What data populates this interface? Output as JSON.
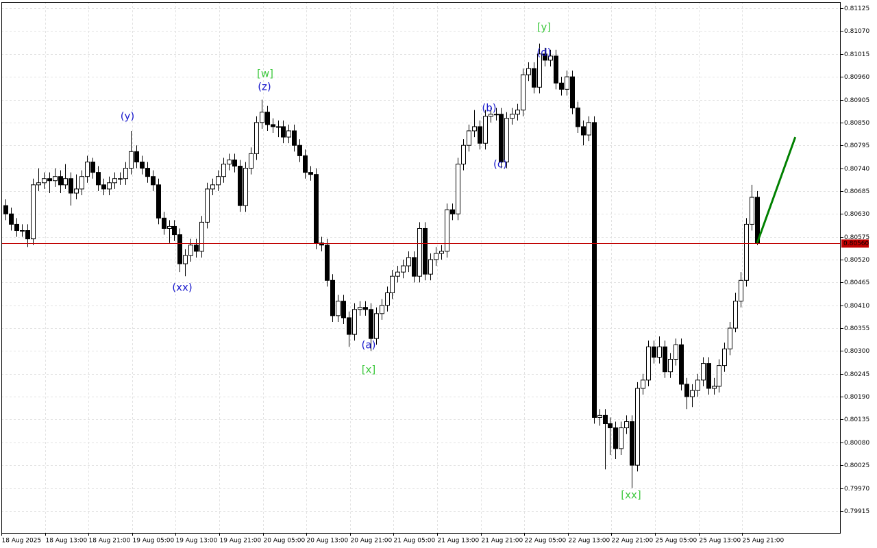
{
  "chart_data": {
    "type": "candlestick",
    "categories": [
      "18 Aug 2025",
      null,
      null,
      null,
      null,
      null,
      null,
      null,
      "18 Aug 13:00",
      null,
      null,
      null,
      null,
      null,
      null,
      null,
      "18 Aug 21:00",
      null,
      null,
      null,
      null,
      null,
      null,
      null,
      "19 Aug 05:00",
      null,
      null,
      null,
      null,
      null,
      null,
      null,
      "19 Aug 13:00",
      null,
      null,
      null,
      null,
      null,
      null,
      null,
      "19 Aug 21:00",
      null,
      null,
      null,
      null,
      null,
      null,
      null,
      "20 Aug 05:00",
      null,
      null,
      null,
      null,
      null,
      null,
      null,
      "20 Aug 13:00",
      null,
      null,
      null,
      null,
      null,
      null,
      null,
      "20 Aug 21:00",
      null,
      null,
      null,
      null,
      null,
      null,
      null,
      "21 Aug 05:00",
      null,
      null,
      null,
      null,
      null,
      null,
      null,
      "21 Aug 13:00",
      null,
      null,
      null,
      null,
      null,
      null,
      null,
      "21 Aug 21:00",
      null,
      null,
      null,
      null,
      null,
      null,
      null,
      "22 Aug 05:00",
      null,
      null,
      null,
      null,
      null,
      null,
      null,
      "22 Aug 13:00",
      null,
      null,
      null,
      null,
      null,
      null,
      null,
      "22 Aug 21:00",
      null,
      null,
      null,
      null,
      null,
      null,
      null,
      "25 Aug 05:00",
      null,
      null,
      null,
      null,
      null,
      null,
      null,
      "25 Aug 13:00",
      null,
      null,
      null,
      null,
      null,
      null,
      null,
      "25 Aug 21:00",
      null,
      null
    ],
    "open": [
      0.8065,
      0.8063,
      0.80605,
      0.8059,
      0.8059,
      0.8057,
      0.807,
      0.80705,
      0.80715,
      0.8071,
      0.8072,
      0.807,
      0.80715,
      0.8068,
      0.8069,
      0.8072,
      0.80755,
      0.8073,
      0.807,
      0.8069,
      0.80705,
      0.80715,
      0.80715,
      0.8074,
      0.8078,
      0.80755,
      0.8074,
      0.8072,
      0.807,
      0.8062,
      0.80595,
      0.806,
      0.8058,
      0.8051,
      0.8053,
      0.80555,
      0.8054,
      0.8061,
      0.8069,
      0.807,
      0.8072,
      0.8075,
      0.8076,
      0.80745,
      0.8065,
      0.8074,
      0.80775,
      0.8085,
      0.80875,
      0.80845,
      0.8084,
      0.8084,
      0.80815,
      0.8083,
      0.80795,
      0.8077,
      0.8073,
      0.80725,
      0.8056,
      0.80555,
      0.8047,
      0.80385,
      0.8042,
      0.8038,
      0.8034,
      0.804,
      0.80405,
      0.804,
      0.8033,
      0.8039,
      0.8041,
      0.8044,
      0.8048,
      0.8049,
      0.80505,
      0.80525,
      0.8048,
      0.80595,
      0.80485,
      0.8052,
      0.80535,
      0.8054,
      0.8064,
      0.8063,
      0.8075,
      0.80795,
      0.8083,
      0.8084,
      0.808,
      0.80865,
      0.8087,
      0.8087,
      0.80755,
      0.8086,
      0.8087,
      0.8088,
      0.80965,
      0.8098,
      0.80935,
      0.81015,
      0.81,
      0.8101,
      0.80945,
      0.8093,
      0.8096,
      0.80885,
      0.8084,
      0.8082,
      0.8085,
      0.8014,
      0.80145,
      0.80125,
      0.80115,
      0.80065,
      0.80115,
      0.8013,
      0.80025,
      0.8021,
      0.8023,
      0.8031,
      0.80285,
      0.8031,
      0.8025,
      0.8028,
      0.80315,
      0.8022,
      0.8019,
      0.80205,
      0.8023,
      0.8027,
      0.8021,
      0.80215,
      0.80265,
      0.80305,
      0.80355,
      0.8042,
      0.8047,
      0.80605,
      0.8067
    ],
    "high": [
      0.80665,
      0.80645,
      0.8062,
      0.80605,
      0.80605,
      0.80715,
      0.8074,
      0.8073,
      0.8073,
      0.8074,
      0.80735,
      0.8075,
      0.8073,
      0.80725,
      0.80735,
      0.8077,
      0.80765,
      0.80745,
      0.80715,
      0.8072,
      0.8073,
      0.8073,
      0.80755,
      0.8083,
      0.80795,
      0.8077,
      0.80755,
      0.80735,
      0.80715,
      0.80635,
      0.80615,
      0.80615,
      0.80595,
      0.80545,
      0.8057,
      0.8057,
      0.80625,
      0.80705,
      0.80715,
      0.80735,
      0.80765,
      0.80775,
      0.80775,
      0.8076,
      0.80755,
      0.8079,
      0.80865,
      0.80905,
      0.8089,
      0.8086,
      0.80855,
      0.80855,
      0.80845,
      0.80845,
      0.8081,
      0.80785,
      0.80745,
      0.8074,
      0.80575,
      0.8057,
      0.80485,
      0.80435,
      0.80435,
      0.80395,
      0.80415,
      0.8042,
      0.8042,
      0.80415,
      0.80405,
      0.80425,
      0.80455,
      0.80495,
      0.80505,
      0.8052,
      0.8054,
      0.8054,
      0.8061,
      0.8061,
      0.80535,
      0.8055,
      0.80555,
      0.80655,
      0.80655,
      0.80765,
      0.8081,
      0.80845,
      0.8088,
      0.80855,
      0.8088,
      0.80885,
      0.80885,
      0.80885,
      0.80875,
      0.80885,
      0.80895,
      0.8098,
      0.80995,
      0.80995,
      0.8104,
      0.8103,
      0.81025,
      0.81025,
      0.8096,
      0.80975,
      0.80975,
      0.809,
      0.80855,
      0.80865,
      0.80865,
      0.8016,
      0.8016,
      0.8014,
      0.8013,
      0.8013,
      0.80145,
      0.80145,
      0.80225,
      0.80245,
      0.80325,
      0.80325,
      0.80335,
      0.80325,
      0.80295,
      0.8033,
      0.8033,
      0.80235,
      0.8022,
      0.80245,
      0.80285,
      0.80285,
      0.80235,
      0.8028,
      0.8032,
      0.8037,
      0.8044,
      0.8049,
      0.8062,
      0.807,
      0.80685
    ],
    "low": [
      0.80615,
      0.8059,
      0.80575,
      0.80575,
      0.8055,
      0.80555,
      0.80685,
      0.8069,
      0.8068,
      0.80695,
      0.8068,
      0.8069,
      0.8065,
      0.80665,
      0.80675,
      0.80705,
      0.80715,
      0.80685,
      0.80675,
      0.80675,
      0.8069,
      0.807,
      0.807,
      0.80725,
      0.8074,
      0.80725,
      0.80705,
      0.80685,
      0.80605,
      0.8058,
      0.8056,
      0.80565,
      0.8049,
      0.8048,
      0.80515,
      0.80525,
      0.80525,
      0.80595,
      0.80675,
      0.80685,
      0.80705,
      0.80735,
      0.8073,
      0.80635,
      0.80635,
      0.80725,
      0.8076,
      0.80835,
      0.8083,
      0.80825,
      0.80815,
      0.808,
      0.808,
      0.8078,
      0.80755,
      0.80715,
      0.8071,
      0.80545,
      0.8054,
      0.80455,
      0.8037,
      0.8037,
      0.80365,
      0.8031,
      0.80325,
      0.80385,
      0.80385,
      0.803,
      0.80315,
      0.80375,
      0.80395,
      0.80425,
      0.80465,
      0.80475,
      0.8049,
      0.80465,
      0.80465,
      0.8047,
      0.8047,
      0.80505,
      0.8052,
      0.80525,
      0.80615,
      0.80615,
      0.80735,
      0.8078,
      0.80815,
      0.80785,
      0.80785,
      0.8085,
      0.80855,
      0.8074,
      0.8074,
      0.80845,
      0.80855,
      0.80865,
      0.8095,
      0.8092,
      0.8092,
      0.80985,
      0.80985,
      0.8093,
      0.80915,
      0.80915,
      0.8087,
      0.80825,
      0.80795,
      0.80805,
      0.80125,
      0.8012,
      0.80015,
      0.8005,
      0.8004,
      0.8005,
      0.801,
      0.7997,
      0.8001,
      0.80195,
      0.80215,
      0.8027,
      0.8027,
      0.80235,
      0.80235,
      0.80265,
      0.80205,
      0.8016,
      0.80165,
      0.8019,
      0.80215,
      0.80195,
      0.80195,
      0.802,
      0.8025,
      0.8029,
      0.80345,
      0.80405,
      0.80455,
      0.8059,
      0.80555
    ],
    "close": [
      0.8063,
      0.80605,
      0.8059,
      0.8059,
      0.8057,
      0.807,
      0.80705,
      0.80715,
      0.8071,
      0.8072,
      0.807,
      0.80715,
      0.8068,
      0.8069,
      0.8072,
      0.80755,
      0.8073,
      0.807,
      0.8069,
      0.80705,
      0.80715,
      0.80715,
      0.8074,
      0.8078,
      0.80755,
      0.8074,
      0.8072,
      0.807,
      0.8062,
      0.80595,
      0.806,
      0.8058,
      0.8051,
      0.8053,
      0.80555,
      0.8054,
      0.8061,
      0.8069,
      0.807,
      0.8072,
      0.8075,
      0.8076,
      0.80745,
      0.8065,
      0.8074,
      0.80775,
      0.8085,
      0.80875,
      0.80845,
      0.8084,
      0.8084,
      0.80815,
      0.8083,
      0.80795,
      0.8077,
      0.8073,
      0.80725,
      0.8056,
      0.80555,
      0.8047,
      0.80385,
      0.8042,
      0.8038,
      0.8034,
      0.804,
      0.80405,
      0.804,
      0.8033,
      0.8039,
      0.8041,
      0.8044,
      0.8048,
      0.8049,
      0.80505,
      0.80525,
      0.8048,
      0.80595,
      0.80485,
      0.8052,
      0.80535,
      0.8054,
      0.8064,
      0.8063,
      0.8075,
      0.80795,
      0.8083,
      0.8084,
      0.808,
      0.80865,
      0.8087,
      0.8087,
      0.80755,
      0.8086,
      0.8087,
      0.8088,
      0.80965,
      0.8098,
      0.80935,
      0.81015,
      0.81,
      0.8101,
      0.80945,
      0.8093,
      0.8096,
      0.80885,
      0.8084,
      0.8082,
      0.8085,
      0.8014,
      0.80145,
      0.80125,
      0.80115,
      0.80065,
      0.80115,
      0.8013,
      0.80025,
      0.8021,
      0.8023,
      0.8031,
      0.80285,
      0.8031,
      0.8025,
      0.8028,
      0.80315,
      0.8022,
      0.8019,
      0.80205,
      0.8023,
      0.8027,
      0.8021,
      0.80215,
      0.80265,
      0.80305,
      0.80355,
      0.8042,
      0.8047,
      0.80605,
      0.8067,
      0.8056
    ],
    "ylim": [
      0.79862,
      0.8114
    ],
    "yticks": [
      0.81125,
      {
        "value": 0.8107,
        "label": "0.81070"
      },
      0.81015,
      {
        "value": 0.8096,
        "label": "0.80960"
      },
      0.80905,
      {
        "value": 0.8085,
        "label": "0.80850"
      },
      0.80795,
      {
        "value": 0.8074,
        "label": "0.80740"
      },
      0.80685,
      {
        "value": 0.8063,
        "label": "0.80630"
      },
      0.80575,
      {
        "value": 0.8052,
        "label": "0.80520"
      },
      0.80465,
      {
        "value": 0.8041,
        "label": "0.80410"
      },
      0.80355,
      {
        "value": 0.803,
        "label": "0.80300"
      },
      0.80245,
      {
        "value": 0.8019,
        "label": "0.80190"
      },
      0.80135,
      {
        "value": 0.8008,
        "label": "0.80080"
      },
      0.80025,
      {
        "value": 0.7997,
        "label": "0.79970"
      },
      0.79915
    ],
    "grid": true,
    "bull_color": "#ffffff",
    "bear_color": "#000000",
    "current_price": {
      "value": 0.8056,
      "label": "0.80560",
      "color": "#c00000"
    },
    "forecast": {
      "color": "#008000",
      "values": [
        0.8056,
        0.80815
      ]
    },
    "annotations": [
      {
        "text": "[w]",
        "color": "#3cc83c"
      },
      {
        "text": "(z)",
        "color": "#1a1acc"
      },
      {
        "text": "(y)",
        "color": "#1a1acc"
      },
      {
        "text": "(xx)",
        "color": "#1a1acc"
      },
      {
        "text": "(a)",
        "color": "#1a1acc"
      },
      {
        "text": "[x]",
        "color": "#3cc83c"
      },
      {
        "text": "[y]",
        "color": "#3cc83c"
      },
      {
        "text": "(d)",
        "color": "#1a1acc"
      },
      {
        "text": "(b)",
        "color": "#1a1acc"
      },
      {
        "text": "(c)",
        "color": "#1a1acc"
      },
      {
        "text": "[xx]",
        "color": "#3cc83c"
      }
    ]
  }
}
